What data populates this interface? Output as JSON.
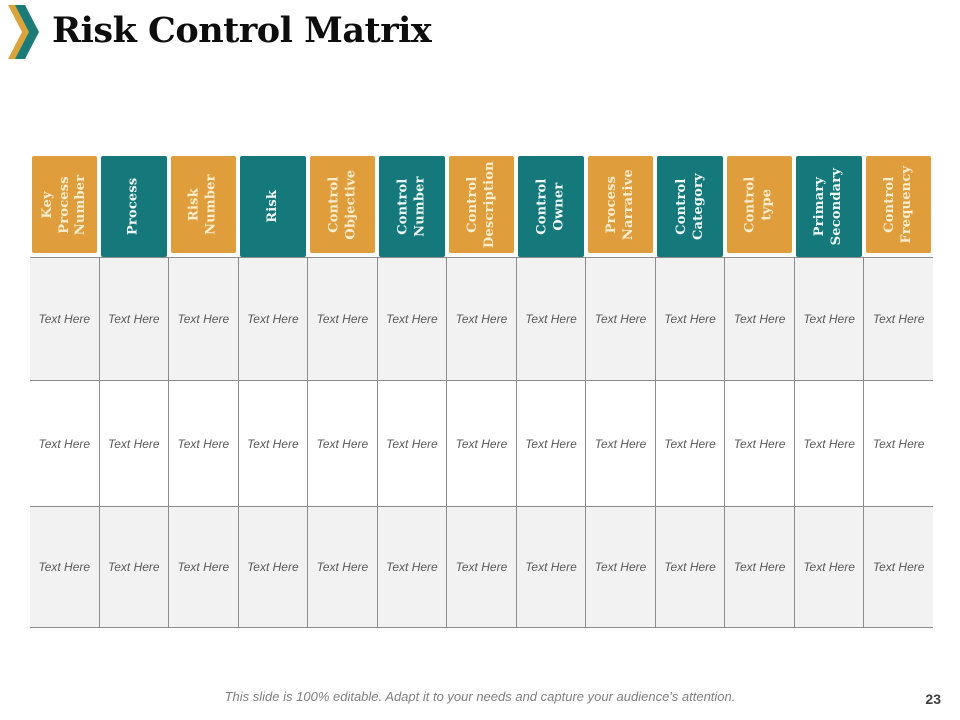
{
  "slide": {
    "title": "Risk Control Matrix",
    "footer_note": "This slide is 100% editable. Adapt it to your needs and capture your audience's attention.",
    "page_number": "23"
  },
  "icon": {
    "name": "double-chevron-icon",
    "back_color": "#D9A43B",
    "front_color": "#1B7B79"
  },
  "colors": {
    "orange": "#DF9D3C",
    "teal": "#15787A",
    "header_text_on_orange": "#FAEED0",
    "header_text_on_teal": "#F0F8F5",
    "row_alt_bg": "#F2F2F2",
    "grid_line": "#8C8C8C",
    "body_text": "#595959"
  },
  "table": {
    "columns": [
      {
        "label": "Key Process\nNumber",
        "accent": "orange"
      },
      {
        "label": "Process",
        "accent": "teal"
      },
      {
        "label": "Risk\nNumber",
        "accent": "orange"
      },
      {
        "label": "Risk",
        "accent": "teal"
      },
      {
        "label": "Control\nObjective",
        "accent": "orange"
      },
      {
        "label": "Control\nNumber",
        "accent": "teal"
      },
      {
        "label": "Control\nDescription",
        "accent": "orange"
      },
      {
        "label": "Control\nOwner",
        "accent": "teal"
      },
      {
        "label": "Process\nNarrative",
        "accent": "orange"
      },
      {
        "label": "Control\nCategory",
        "accent": "teal"
      },
      {
        "label": "Control\ntype",
        "accent": "orange"
      },
      {
        "label": "Primary\nSecondary",
        "accent": "teal"
      },
      {
        "label": "Control\nFrequency",
        "accent": "orange"
      }
    ],
    "rows": [
      [
        "Text Here",
        "Text Here",
        "Text Here",
        "Text Here",
        "Text Here",
        "Text Here",
        "Text Here",
        "Text Here",
        "Text Here",
        "Text Here",
        "Text Here",
        "Text Here",
        "Text Here"
      ],
      [
        "Text Here",
        "Text Here",
        "Text Here",
        "Text Here",
        "Text Here",
        "Text Here",
        "Text Here",
        "Text Here",
        "Text Here",
        "Text Here",
        "Text Here",
        "Text Here",
        "Text Here"
      ],
      [
        "Text Here",
        "Text Here",
        "Text Here",
        "Text Here",
        "Text Here",
        "Text Here",
        "Text Here",
        "Text Here",
        "Text Here",
        "Text Here",
        "Text Here",
        "Text Here",
        "Text Here"
      ]
    ]
  }
}
